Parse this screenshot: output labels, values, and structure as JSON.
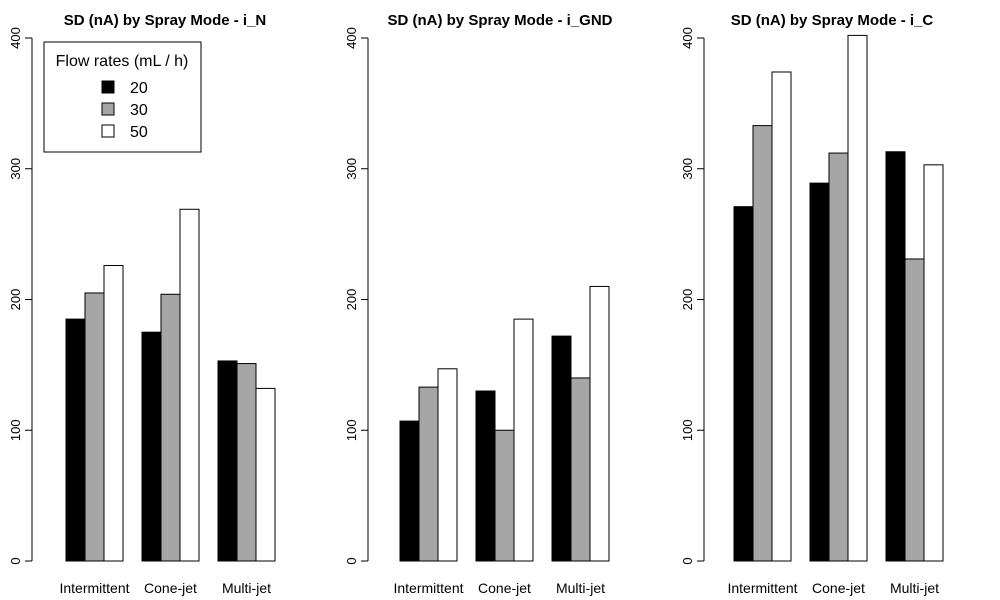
{
  "chart_data": [
    {
      "type": "bar",
      "title": "SD (nA) by Spray Mode -  i_N",
      "categories": [
        "Intermittent",
        "Cone-jet",
        "Multi-jet"
      ],
      "series": [
        {
          "name": "20",
          "values": [
            185,
            175,
            153
          ]
        },
        {
          "name": "30",
          "values": [
            205,
            204,
            151
          ]
        },
        {
          "name": "50",
          "values": [
            226,
            269,
            132
          ]
        }
      ],
      "ylim": [
        0,
        400
      ],
      "yticks": [
        "0",
        "100",
        "200",
        "300",
        "400"
      ],
      "xlabel": "",
      "ylabel": "",
      "legend": {
        "title": "Flow rates (mL / h)",
        "position": "top-left"
      }
    },
    {
      "type": "bar",
      "title": "SD (nA) by Spray Mode -  i_GND",
      "categories": [
        "Intermittent",
        "Cone-jet",
        "Multi-jet"
      ],
      "series": [
        {
          "name": "20",
          "values": [
            107,
            130,
            172
          ]
        },
        {
          "name": "30",
          "values": [
            133,
            100,
            140
          ]
        },
        {
          "name": "50",
          "values": [
            147,
            185,
            210
          ]
        }
      ],
      "ylim": [
        0,
        400
      ],
      "yticks": [
        "0",
        "100",
        "200",
        "300",
        "400"
      ],
      "xlabel": "",
      "ylabel": ""
    },
    {
      "type": "bar",
      "title": "SD (nA) by Spray Mode -  i_C",
      "categories": [
        "Intermittent",
        "Cone-jet",
        "Multi-jet"
      ],
      "series": [
        {
          "name": "20",
          "values": [
            271,
            289,
            313
          ]
        },
        {
          "name": "30",
          "values": [
            333,
            312,
            231
          ]
        },
        {
          "name": "50",
          "values": [
            374,
            402,
            303
          ]
        }
      ],
      "ylim": [
        0,
        400
      ],
      "yticks": [
        "0",
        "100",
        "200",
        "300",
        "400"
      ],
      "xlabel": "",
      "ylabel": ""
    }
  ],
  "colors": {
    "series": [
      "#000000",
      "#a6a6a6",
      "#ffffff"
    ],
    "stroke": "#000000"
  }
}
